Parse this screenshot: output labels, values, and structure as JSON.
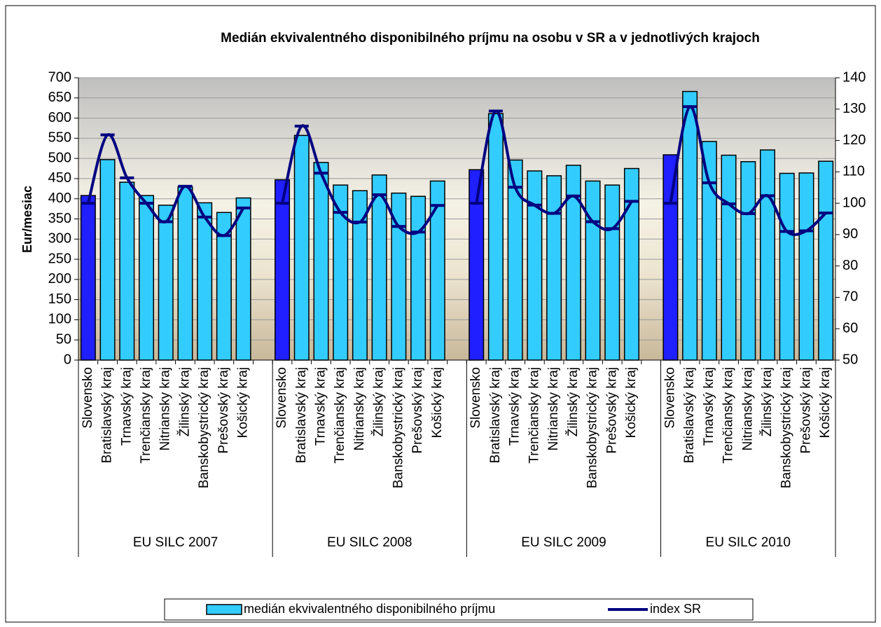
{
  "chart_data": {
    "type": "bar_line",
    "title": "Medián ekvivalentného disponibilného príjmu na osobu v SR a v jednotlivých krajoch",
    "ylabel": "Eur/mesiac",
    "categories": [
      "Slovensko",
      "Bratislavský kraj",
      "Trnavský kraj",
      "Trenčiansky kraj",
      "Nitriansky kraj",
      "Žilinský kraj",
      "Banskobystrický kraj",
      "Prešovský kraj",
      "Košický kraj",
      null,
      "Slovensko",
      "Bratislavský kraj",
      "Trnavský kraj",
      "Trenčiansky kraj",
      "Nitriansky kraj",
      "Žilinský kraj",
      "Banskobystrický kraj",
      "Prešovský kraj",
      "Košický kraj",
      null,
      "Slovensko",
      "Bratislavský kraj",
      "Trnavský kraj",
      "Trenčiansky kraj",
      "Nitriansky kraj",
      "Žilinský kraj",
      "Banskobystrický kraj",
      "Prešovský kraj",
      "Košický kraj",
      null,
      "Slovensko",
      "Bratislavský kraj",
      "Trnavský kraj",
      "Trenčiansky kraj",
      "Nitriansky kraj",
      "Žilinský kraj",
      "Banskobystrický kraj",
      "Prešovský kraj",
      "Košický kraj"
    ],
    "groups": [
      "EU SILC 2007",
      "EU SILC 2008",
      "EU SILC 2009",
      "EU SILC 2010"
    ],
    "series": [
      {
        "name": "medián ekvivalentného disponibilného príjmu",
        "type": "bar",
        "color": "#33ccff",
        "values": [
          408,
          497,
          441,
          408,
          384,
          430,
          390,
          366,
          402,
          null,
          447,
          557,
          490,
          434,
          420,
          459,
          414,
          406,
          444,
          null,
          472,
          611,
          496,
          469,
          457,
          483,
          444,
          434,
          475,
          null,
          509,
          666,
          542,
          508,
          492,
          521,
          463,
          464,
          493
        ]
      },
      {
        "name": "index SR",
        "type": "line",
        "axis": "y2",
        "color": "#000080",
        "values": [
          100,
          121.8,
          108.1,
          100,
          94.1,
          105.4,
          95.6,
          89.7,
          98.5,
          null,
          100,
          124.6,
          109.6,
          97.1,
          94,
          102.7,
          92.6,
          90.8,
          99.3,
          null,
          100,
          129.4,
          105.1,
          99.4,
          96.8,
          102.3,
          94.1,
          91.9,
          100.6,
          null,
          100,
          130.8,
          106.5,
          99.8,
          96.7,
          102.4,
          91,
          91.2,
          96.9
        ]
      }
    ],
    "highlight": {
      "category": "Slovensko",
      "color": "#1f1fff"
    },
    "ylim": [
      0,
      700
    ],
    "yticks": [
      0,
      50,
      100,
      150,
      200,
      250,
      300,
      350,
      400,
      450,
      500,
      550,
      600,
      650,
      700
    ],
    "y2lim": [
      50,
      140
    ],
    "y2ticks": [
      50,
      60,
      70,
      80,
      90,
      100,
      110,
      120,
      130,
      140
    ],
    "grid": true
  }
}
